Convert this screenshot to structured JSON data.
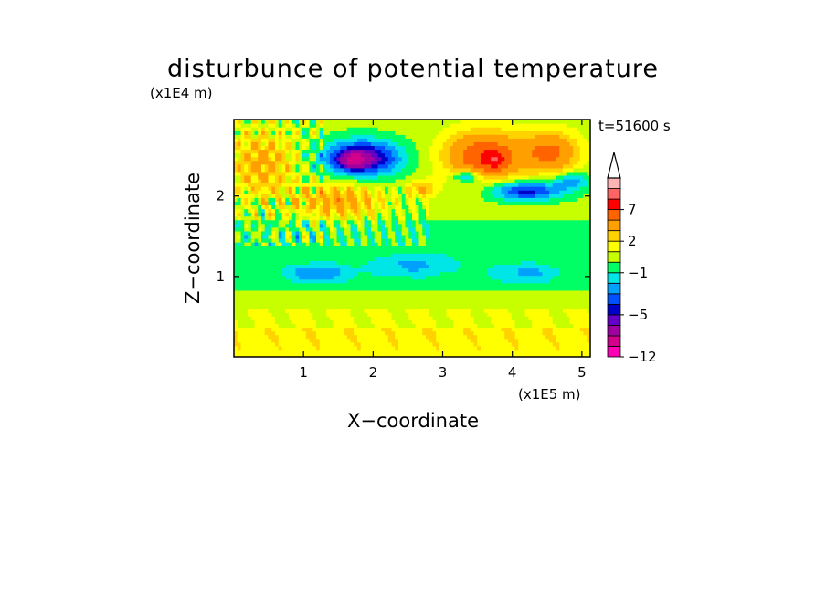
{
  "chart_data": {
    "type": "heatmap",
    "title": "disturbunce of potential temperature",
    "xlabel": "X−coordinate",
    "ylabel": "Z−coordinate",
    "x_unit_label": "(x1E5 m)",
    "y_unit_label": "(x1E4 m)",
    "time_label": "t=51600 s",
    "xlim": [
      0,
      5.12
    ],
    "ylim": [
      0,
      2.95
    ],
    "x_ticks": [
      "1",
      "2",
      "3",
      "4",
      "5"
    ],
    "x_tick_values": [
      1,
      2,
      3,
      4,
      5
    ],
    "y_ticks": [
      "1",
      "2"
    ],
    "y_tick_values": [
      1,
      2
    ],
    "colorbar": {
      "tick_labels": [
        "7",
        "2",
        "−1",
        "−5",
        "−12"
      ],
      "levels_bottom_to_top": [
        -12,
        -10,
        -8,
        -6,
        -5,
        -4,
        -3,
        -2,
        -1,
        0,
        1,
        2,
        3,
        5,
        7,
        9,
        11
      ],
      "colors_bottom_to_top": [
        "#ff00b4",
        "#d2008c",
        "#a000a0",
        "#6400c8",
        "#0000c8",
        "#0050ff",
        "#00a0ff",
        "#00e6e6",
        "#00ff64",
        "#c8ff00",
        "#ffff00",
        "#ffd200",
        "#ffa000",
        "#ff6400",
        "#ff0000",
        "#ff6464",
        "#ffb4b4"
      ],
      "extend": "max"
    },
    "field_description_regions": [
      {
        "x": [
          0,
          5.12
        ],
        "z": [
          0,
          0.4
        ],
        "value": 1,
        "note": "yellow/orange band near surface"
      },
      {
        "x": [
          0,
          5.12
        ],
        "z": [
          0.8,
          1.6
        ],
        "value": -0.5,
        "note": "green with cyan patches"
      },
      {
        "x": [
          1.0,
          2.6
        ],
        "z": [
          2.2,
          2.75
        ],
        "value": -5,
        "note": "blue/purple core"
      },
      {
        "x": [
          2.9,
          4.2
        ],
        "z": [
          2.2,
          2.9
        ],
        "value": 6,
        "note": "orange/red upper right"
      },
      {
        "x": [
          3.6,
          5.0
        ],
        "z": [
          1.95,
          2.2
        ],
        "value": -5,
        "note": "blue band"
      }
    ]
  }
}
